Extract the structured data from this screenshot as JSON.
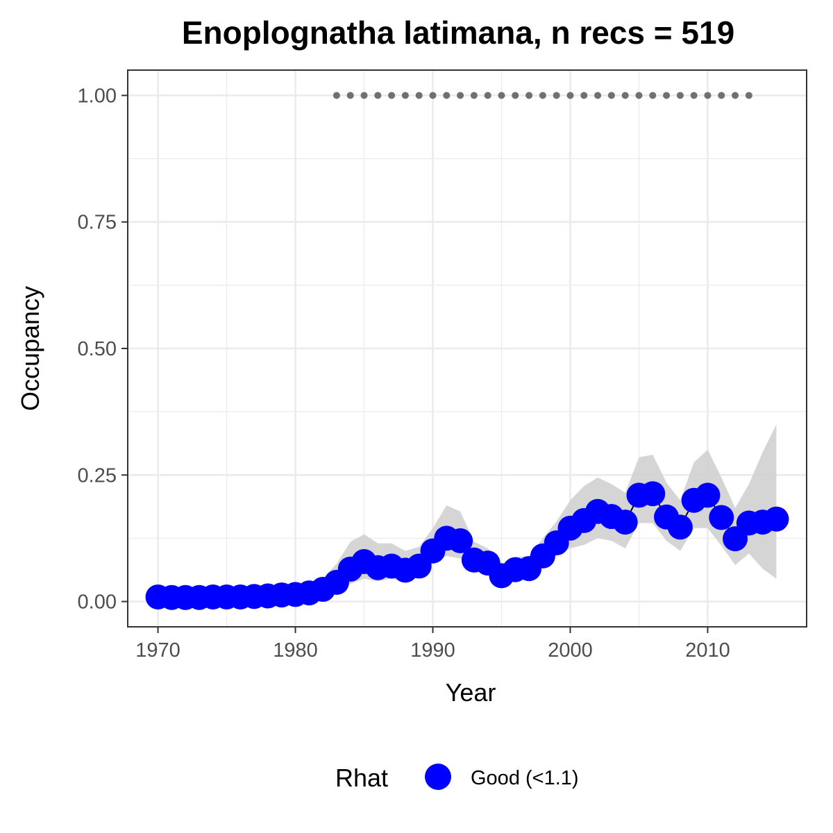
{
  "chart_data": {
    "type": "line",
    "title": "Enoplognatha latimana, n recs = 519",
    "xlabel": "Year",
    "ylabel": "Occupancy",
    "xlim": [
      1967.8,
      2017.2
    ],
    "ylim": [
      -0.05,
      1.05
    ],
    "x_ticks": [
      1970,
      1980,
      1990,
      2000,
      2010
    ],
    "y_ticks": [
      0.0,
      0.25,
      0.5,
      0.75,
      1.0
    ],
    "x_tick_labels": [
      "1970",
      "1980",
      "1990",
      "2000",
      "2010"
    ],
    "y_tick_labels": [
      "0.00",
      "0.25",
      "0.50",
      "0.75",
      "1.00"
    ],
    "grid": true,
    "legend": {
      "title": "Rhat",
      "position": "bottom",
      "entries": [
        "Good (<1.1)"
      ]
    },
    "colors": {
      "point": "#0000ff",
      "ribbon": "#d3d3d3",
      "records": "#707070",
      "grid": "#ebebeb",
      "border": "#333333"
    },
    "series": [
      {
        "name": "Good (<1.1)",
        "x": [
          1970,
          1971,
          1972,
          1973,
          1974,
          1975,
          1976,
          1977,
          1978,
          1979,
          1980,
          1981,
          1982,
          1983,
          1984,
          1985,
          1986,
          1987,
          1988,
          1989,
          1990,
          1991,
          1992,
          1993,
          1994,
          1995,
          1996,
          1997,
          1998,
          1999,
          2000,
          2001,
          2002,
          2003,
          2004,
          2005,
          2006,
          2007,
          2008,
          2009,
          2010,
          2011,
          2012,
          2013,
          2014,
          2015
        ],
        "y": [
          0.009,
          0.008,
          0.008,
          0.008,
          0.009,
          0.009,
          0.009,
          0.01,
          0.011,
          0.013,
          0.014,
          0.017,
          0.024,
          0.038,
          0.064,
          0.079,
          0.067,
          0.07,
          0.062,
          0.07,
          0.1,
          0.125,
          0.12,
          0.082,
          0.076,
          0.051,
          0.063,
          0.065,
          0.09,
          0.116,
          0.145,
          0.16,
          0.178,
          0.168,
          0.157,
          0.21,
          0.213,
          0.167,
          0.147,
          0.2,
          0.21,
          0.166,
          0.124,
          0.155,
          0.157,
          0.163
        ],
        "lower": [
          0.002,
          0.002,
          0.002,
          0.002,
          0.002,
          0.002,
          0.002,
          0.003,
          0.003,
          0.004,
          0.005,
          0.006,
          0.01,
          0.02,
          0.035,
          0.045,
          0.04,
          0.045,
          0.04,
          0.048,
          0.075,
          0.09,
          0.085,
          0.058,
          0.055,
          0.036,
          0.045,
          0.047,
          0.068,
          0.09,
          0.105,
          0.112,
          0.125,
          0.12,
          0.105,
          0.155,
          0.155,
          0.12,
          0.1,
          0.145,
          0.145,
          0.11,
          0.072,
          0.095,
          0.065,
          0.045
        ],
        "upper": [
          0.022,
          0.02,
          0.019,
          0.019,
          0.02,
          0.02,
          0.021,
          0.022,
          0.024,
          0.026,
          0.028,
          0.033,
          0.045,
          0.075,
          0.118,
          0.133,
          0.115,
          0.115,
          0.1,
          0.108,
          0.145,
          0.19,
          0.178,
          0.118,
          0.105,
          0.075,
          0.088,
          0.09,
          0.125,
          0.158,
          0.2,
          0.228,
          0.245,
          0.232,
          0.215,
          0.285,
          0.29,
          0.235,
          0.2,
          0.275,
          0.3,
          0.245,
          0.185,
          0.232,
          0.295,
          0.35
        ]
      }
    ],
    "record_years": [
      1983,
      1984,
      1985,
      1986,
      1987,
      1988,
      1989,
      1990,
      1991,
      1992,
      1993,
      1994,
      1995,
      1996,
      1997,
      1998,
      1999,
      2000,
      2001,
      2002,
      2003,
      2004,
      2005,
      2006,
      2007,
      2008,
      2009,
      2010,
      2011,
      2012,
      2013
    ],
    "record_level": 1.0
  }
}
